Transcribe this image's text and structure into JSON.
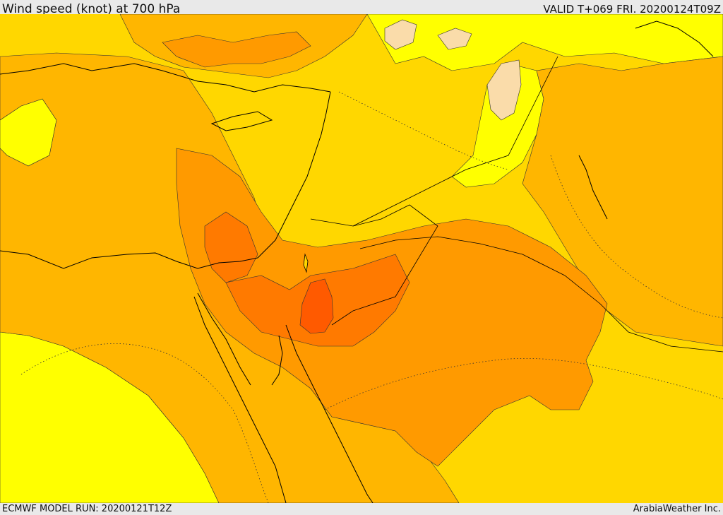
{
  "header": {
    "title": "Wind speed (knot) at 700 hPa",
    "valid_time": "VALID T+069 FRI. 20200124T09Z"
  },
  "footer": {
    "model_run": "ECMWF MODEL RUN: 20200121T12Z",
    "credit": "ArabiaWeather Inc."
  },
  "map": {
    "variable": "wind speed",
    "units": "knot",
    "pressure_level": "700 hPa",
    "colors": {
      "lightest_band": "#ffff00",
      "light_band": "#ffd700",
      "mid_band": "#ffb600",
      "high_band": "#ff9a00",
      "very_high_band": "#ff7a00",
      "peak_band": "#ff5a00",
      "calm_band": "#fadcaa",
      "contour_line": "#333333",
      "coastline": "#000000"
    }
  }
}
